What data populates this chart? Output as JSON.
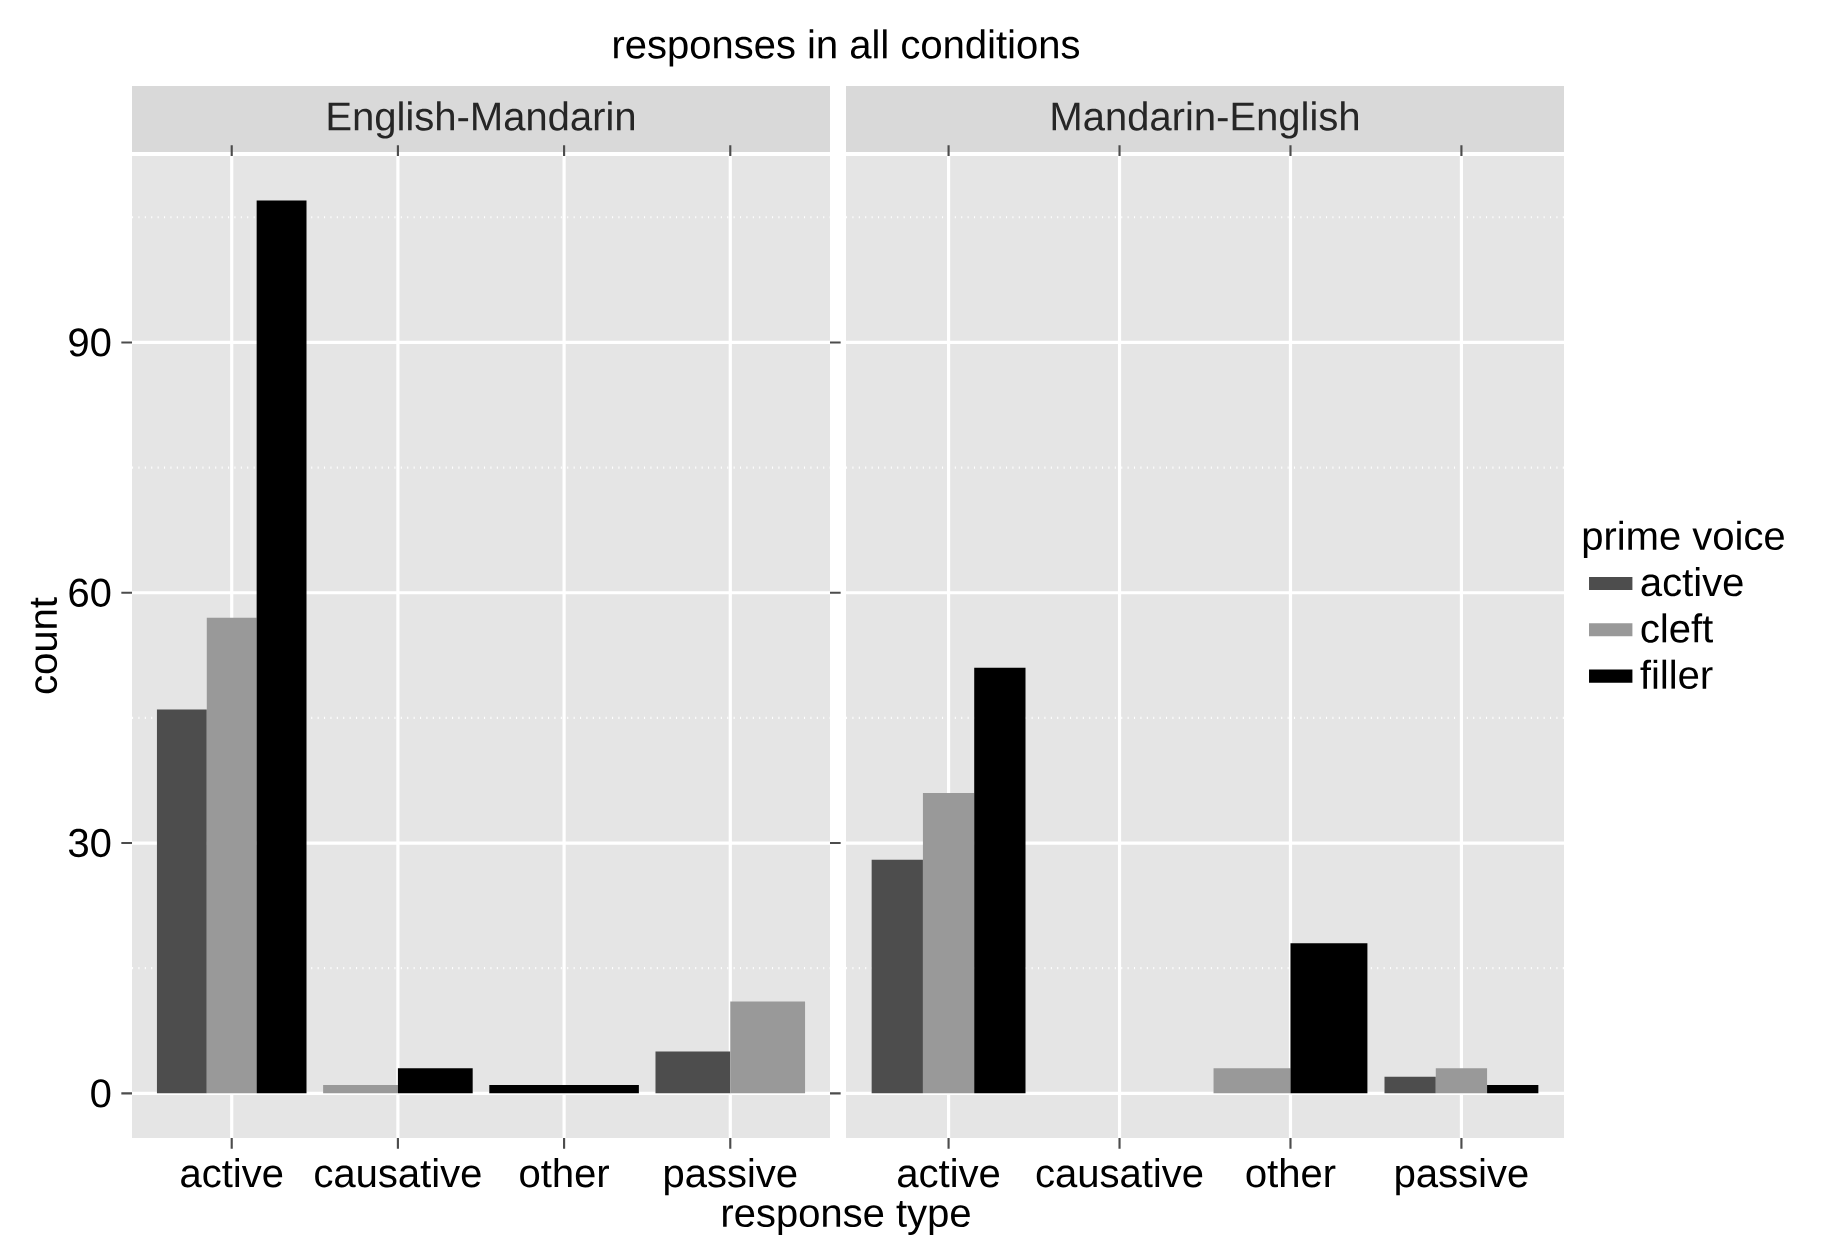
{
  "chart_data": [
    {
      "type": "bar",
      "title": "responses in all conditions",
      "subtitle": "English-Mandarin",
      "xlabel": "response type",
      "ylabel": "count",
      "categories": [
        "active",
        "causative",
        "other",
        "passive"
      ],
      "series": [
        {
          "color": "#4d4d4d",
          "values": [
            46,
            null,
            null,
            5
          ]
        },
        {
          "color": "#999999",
          "values": [
            57,
            1,
            null,
            11
          ]
        },
        {
          "color": "#000000",
          "values": [
            107,
            3,
            1,
            null
          ]
        }
      ],
      "ylim": [
        -5.35,
        112.35
      ],
      "yticks": [
        0,
        30,
        60,
        90
      ],
      "grid": true
    },
    {
      "type": "bar",
      "subtitle": "Mandarin-English",
      "categories": [
        "active",
        "causative",
        "other",
        "passive"
      ],
      "series": [
        {
          "name": "active",
          "color": "#4d4d4d",
          "values": [
            28,
            null,
            null,
            2
          ]
        },
        {
          "name": "cleft",
          "color": "#999999",
          "values": [
            36,
            null,
            3,
            3
          ]
        },
        {
          "name": "filler",
          "color": "#000000",
          "values": [
            51,
            null,
            18,
            1
          ]
        }
      ],
      "ylim": [
        -5.35,
        112.35
      ],
      "yticks": [
        0,
        30,
        60,
        90
      ],
      "grid": true,
      "legend": "right",
      "legend_title": "prime voice",
      "tick_labels": "x"
    }
  ]
}
